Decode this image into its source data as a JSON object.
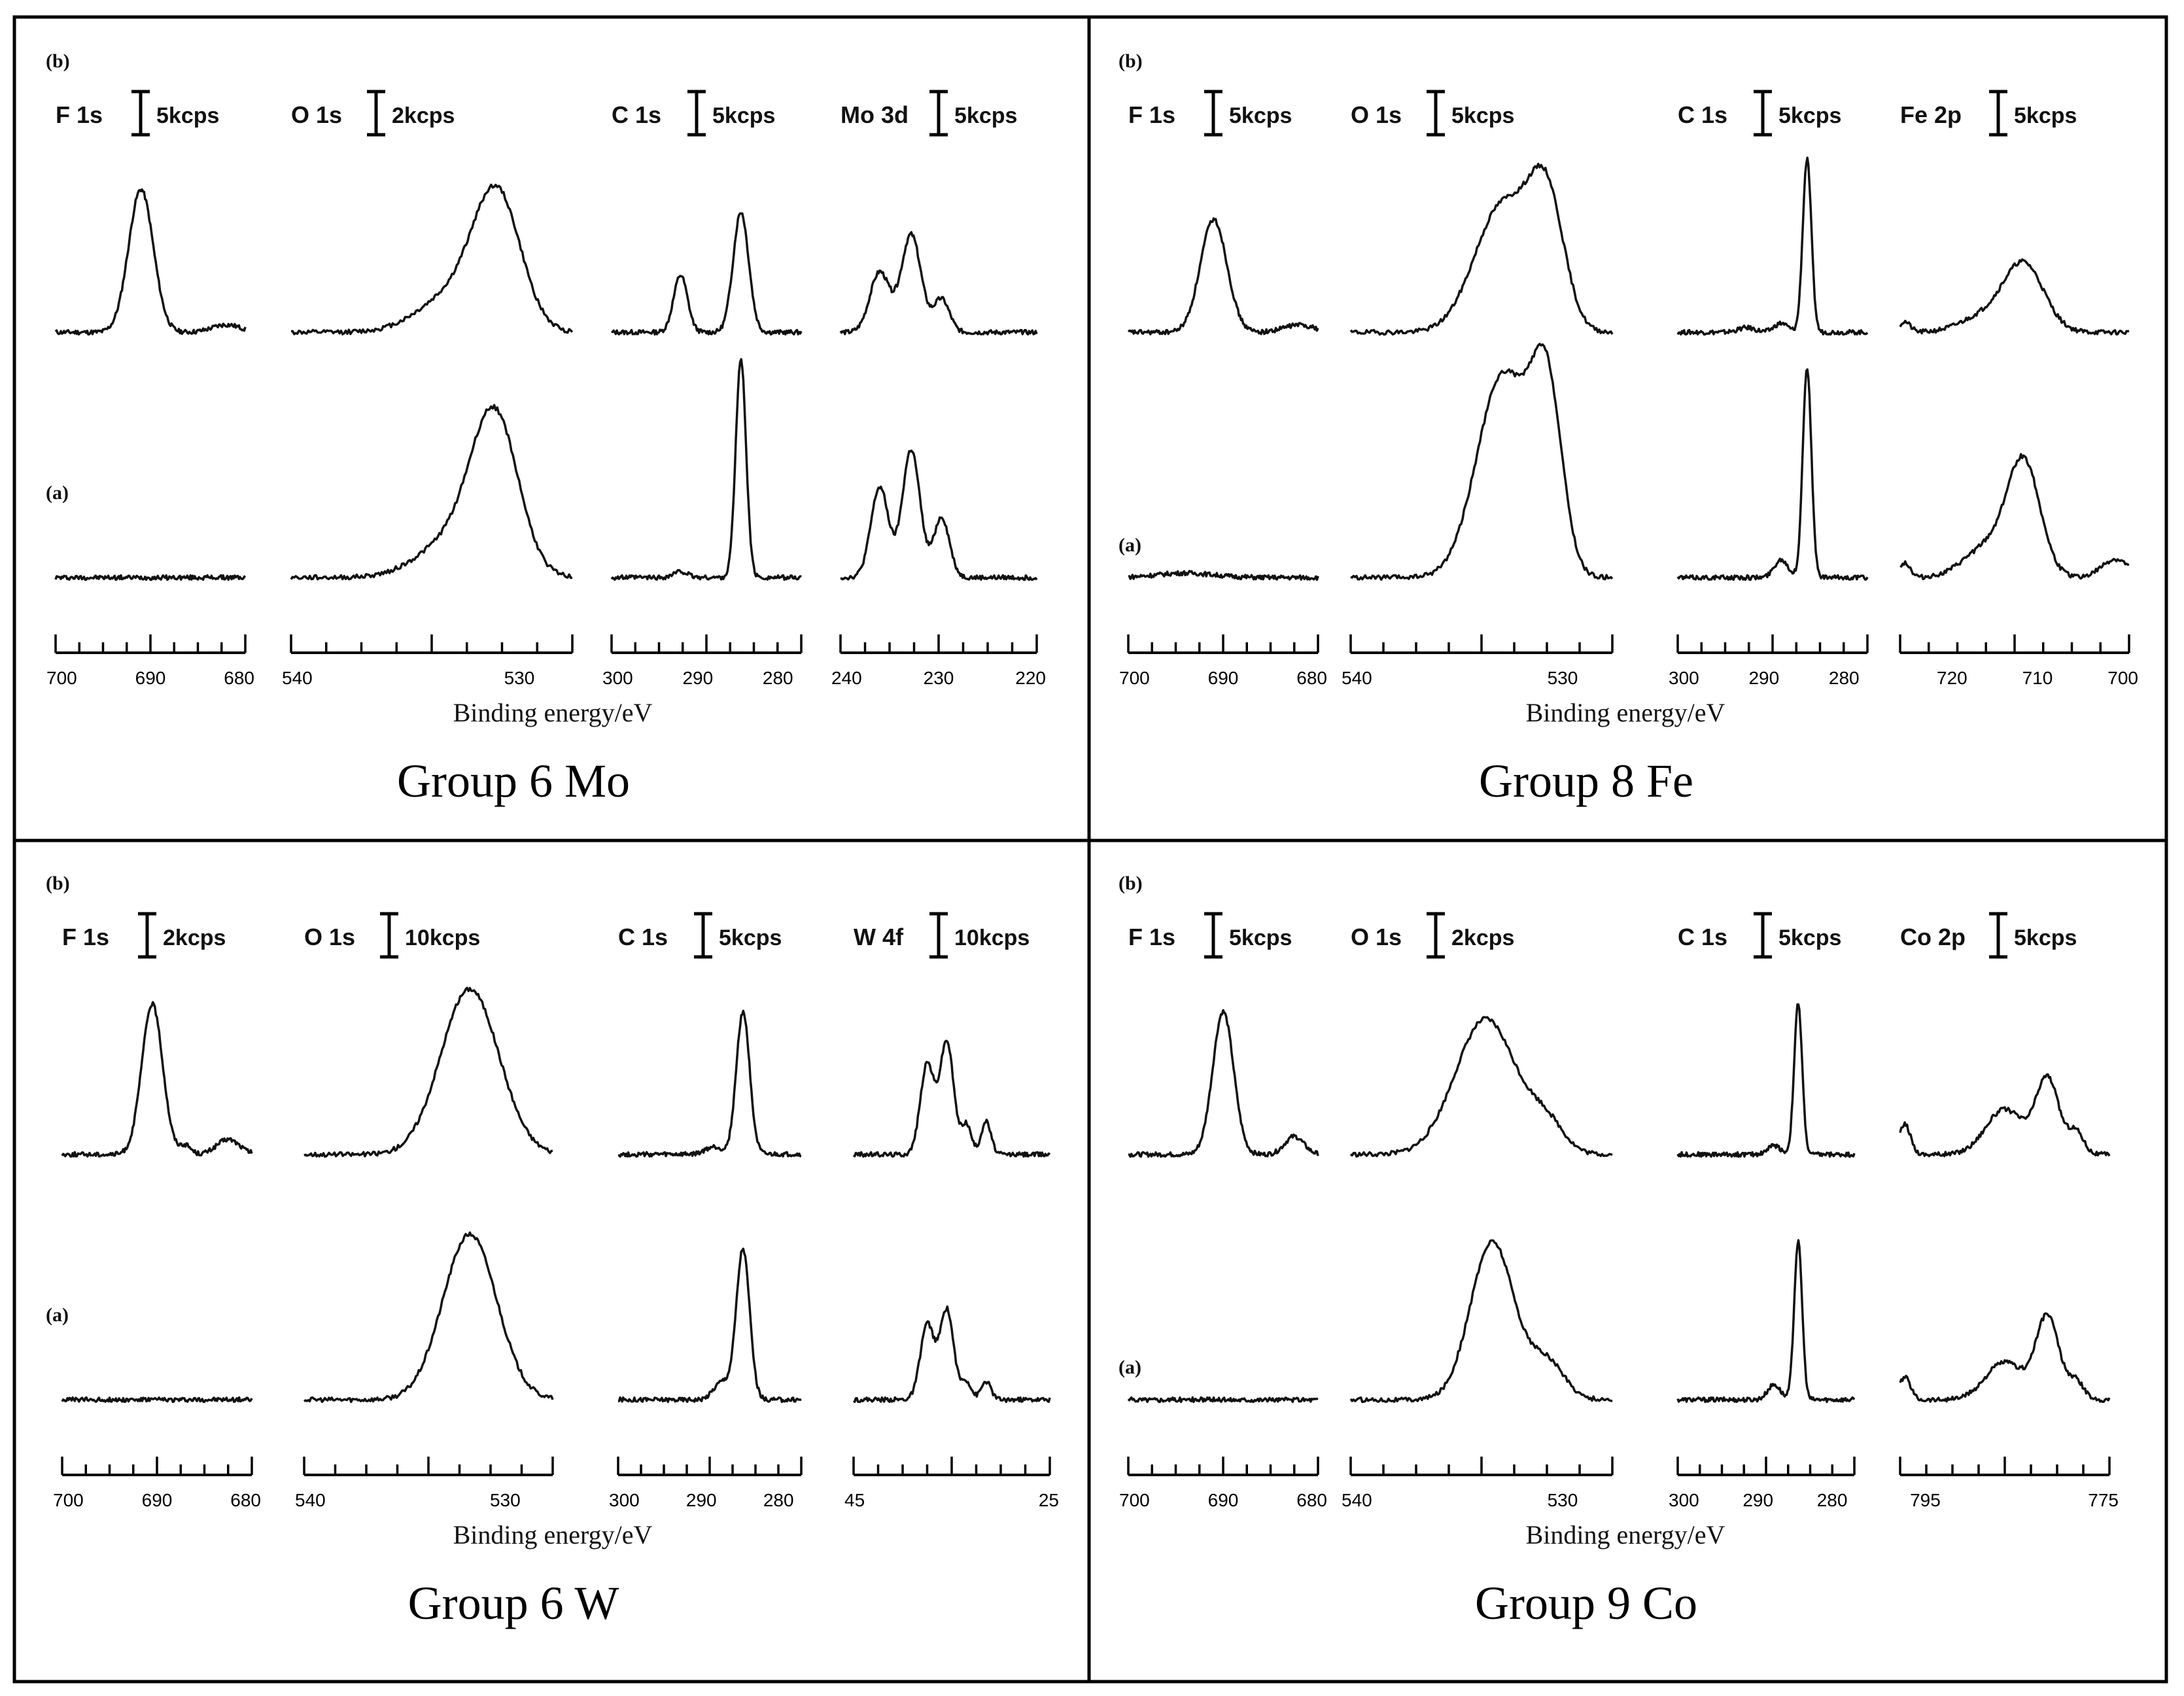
{
  "figure": {
    "description_panels": [
      "Group 6 Mo",
      "Group 8 Fe",
      "Group 6 W",
      "Group 9 Co"
    ]
  },
  "chart_data": [
    {
      "type": "line",
      "title": "Group 6 Mo",
      "xlabel": "Binding energy/eV",
      "state_labels": {
        "upper": "(b)",
        "lower": "(a)"
      },
      "subplots": [
        {
          "element": "F 1s",
          "scale": "5kcps",
          "xlim": [
            700,
            680
          ],
          "ticks": [
            "700",
            "690",
            "680"
          ],
          "peaks_b": [
            {
              "x": 691,
              "h": 0.95,
              "w": 1.3
            },
            {
              "x": 682,
              "h": 0.05,
              "w": 1.5
            }
          ],
          "peaks_a": []
        },
        {
          "element": "O 1s",
          "scale": "2kcps",
          "xlim": [
            540,
            528
          ],
          "ticks": [
            "540",
            "530"
          ],
          "peaks_b": [
            {
              "x": 531.2,
              "h": 0.85,
              "w": 1.0
            },
            {
              "x": 533,
              "h": 0.25,
              "w": 1.5
            }
          ],
          "peaks_a": [
            {
              "x": 531.3,
              "h": 1.0,
              "w": 1.0
            },
            {
              "x": 533,
              "h": 0.25,
              "w": 1.5
            }
          ]
        },
        {
          "element": "C 1s",
          "scale": "5kcps",
          "xlim": [
            300,
            278
          ],
          "ticks": [
            "300",
            "290",
            "280"
          ],
          "peaks_b": [
            {
              "x": 292,
              "h": 0.38,
              "w": 0.8
            },
            {
              "x": 285,
              "h": 0.8,
              "w": 0.9
            }
          ],
          "peaks_a": [
            {
              "x": 292,
              "h": 0.04,
              "w": 0.8
            },
            {
              "x": 285,
              "h": 1.45,
              "w": 0.6
            }
          ]
        },
        {
          "element": "Mo 3d",
          "scale": "5kcps",
          "xlim": [
            240,
            220
          ],
          "ticks": [
            "240",
            "230",
            "220"
          ],
          "peaks_b": [
            {
              "x": 236,
              "h": 0.4,
              "w": 1.0
            },
            {
              "x": 232.8,
              "h": 0.65,
              "w": 1.0
            },
            {
              "x": 229.7,
              "h": 0.22,
              "w": 0.8
            }
          ],
          "peaks_a": [
            {
              "x": 236,
              "h": 0.6,
              "w": 0.9
            },
            {
              "x": 232.8,
              "h": 0.85,
              "w": 0.9
            },
            {
              "x": 229.7,
              "h": 0.4,
              "w": 0.8
            }
          ]
        }
      ]
    },
    {
      "type": "line",
      "title": "Group 8 Fe",
      "xlabel": "Binding energy/eV",
      "state_labels": {
        "upper": "(b)",
        "lower": "(a)"
      },
      "subplots": [
        {
          "element": "F 1s",
          "scale": "5kcps",
          "xlim": [
            700,
            680
          ],
          "ticks": [
            "700",
            "690",
            "680"
          ],
          "peaks_b": [
            {
              "x": 691,
              "h": 0.75,
              "w": 1.4
            },
            {
              "x": 682,
              "h": 0.05,
              "w": 1.6
            }
          ],
          "peaks_a": [
            {
              "x": 694,
              "h": 0.03,
              "w": 3
            }
          ]
        },
        {
          "element": "O 1s",
          "scale": "5kcps",
          "xlim": [
            540,
            528
          ],
          "ticks": [
            "540",
            "530"
          ],
          "peaks_b": [
            {
              "x": 533,
              "h": 0.85,
              "w": 1.3
            },
            {
              "x": 531,
              "h": 0.8,
              "w": 0.8
            }
          ],
          "peaks_a": [
            {
              "x": 533,
              "h": 1.35,
              "w": 1.2
            },
            {
              "x": 531,
              "h": 1.15,
              "w": 0.7
            }
          ]
        },
        {
          "element": "C 1s",
          "scale": "5kcps",
          "xlim": [
            300,
            278
          ],
          "ticks": [
            "300",
            "290",
            "280"
          ],
          "peaks_b": [
            {
              "x": 292,
              "h": 0.03,
              "w": 1.0
            },
            {
              "x": 288,
              "h": 0.06,
              "w": 0.8
            },
            {
              "x": 285,
              "h": 1.15,
              "w": 0.5
            }
          ],
          "peaks_a": [
            {
              "x": 288,
              "h": 0.12,
              "w": 0.8
            },
            {
              "x": 285,
              "h": 1.4,
              "w": 0.5
            }
          ]
        },
        {
          "element": "Fe 2p",
          "scale": "5kcps",
          "xlim": [
            725,
            700
          ],
          "ticks": [
            "720",
            "710",
            "700"
          ],
          "peaks_b": [
            {
              "x": 711.5,
              "h": 0.45,
              "w": 2.2
            },
            {
              "x": 716,
              "h": 0.1,
              "w": 2.5
            },
            {
              "x": 724.5,
              "h": 0.07,
              "w": 0.6
            }
          ],
          "peaks_a": [
            {
              "x": 711.5,
              "h": 0.75,
              "w": 1.8
            },
            {
              "x": 715.5,
              "h": 0.2,
              "w": 2.5
            },
            {
              "x": 724.5,
              "h": 0.1,
              "w": 0.6
            },
            {
              "x": 701.5,
              "h": 0.12,
              "w": 1.5
            }
          ]
        }
      ]
    },
    {
      "type": "line",
      "title": "Group 6 W",
      "xlabel": "Binding energy/eV",
      "state_labels": {
        "upper": "(b)",
        "lower": "(a)"
      },
      "subplots": [
        {
          "element": "F 1s",
          "scale": "2kcps",
          "xlim": [
            700,
            680
          ],
          "ticks": [
            "700",
            "690",
            "680"
          ],
          "peaks_b": [
            {
              "x": 690.5,
              "h": 1.0,
              "w": 1.1
            },
            {
              "x": 687,
              "h": 0.06,
              "w": 0.6
            },
            {
              "x": 682.5,
              "h": 0.1,
              "w": 1.2
            }
          ],
          "peaks_a": []
        },
        {
          "element": "O 1s",
          "scale": "10kcps",
          "xlim": [
            540,
            528
          ],
          "ticks": [
            "540",
            "530"
          ],
          "peaks_b": [
            {
              "x": 532,
              "h": 1.1,
              "w": 1.4
            }
          ],
          "peaks_a": [
            {
              "x": 532,
              "h": 1.1,
              "w": 1.3
            }
          ]
        },
        {
          "element": "C 1s",
          "scale": "5kcps",
          "xlim": [
            300,
            278
          ],
          "ticks": [
            "300",
            "290",
            "280"
          ],
          "peaks_b": [
            {
              "x": 285,
              "h": 0.95,
              "w": 0.8
            },
            {
              "x": 288.5,
              "h": 0.05,
              "w": 1
            }
          ],
          "peaks_a": [
            {
              "x": 285,
              "h": 1.0,
              "w": 0.8
            },
            {
              "x": 287.5,
              "h": 0.12,
              "w": 1
            }
          ]
        },
        {
          "element": "W 4f",
          "scale": "10kcps",
          "xlim": [
            45,
            25
          ],
          "ticks": [
            "45",
            "25"
          ],
          "peaks_b": [
            {
              "x": 37.5,
              "h": 0.6,
              "w": 0.7
            },
            {
              "x": 35.5,
              "h": 0.75,
              "w": 0.7
            },
            {
              "x": 33.5,
              "h": 0.2,
              "w": 0.5
            },
            {
              "x": 31.5,
              "h": 0.22,
              "w": 0.5
            }
          ],
          "peaks_a": [
            {
              "x": 37.5,
              "h": 0.5,
              "w": 0.7
            },
            {
              "x": 35.5,
              "h": 0.6,
              "w": 0.7
            },
            {
              "x": 33.5,
              "h": 0.12,
              "w": 0.5
            },
            {
              "x": 31.5,
              "h": 0.12,
              "w": 0.5
            }
          ]
        }
      ]
    },
    {
      "type": "line",
      "title": "Group 9 Co",
      "xlabel": "Binding energy/eV",
      "state_labels": {
        "upper": "(b)",
        "lower": "(a)"
      },
      "subplots": [
        {
          "element": "F 1s",
          "scale": "5kcps",
          "xlim": [
            700,
            680
          ],
          "ticks": [
            "700",
            "690",
            "680"
          ],
          "peaks_b": [
            {
              "x": 690,
              "h": 0.95,
              "w": 1.1
            },
            {
              "x": 682.5,
              "h": 0.12,
              "w": 1.0
            }
          ],
          "peaks_a": []
        },
        {
          "element": "O 1s",
          "scale": "2kcps",
          "xlim": [
            540,
            528
          ],
          "ticks": [
            "540",
            "530"
          ],
          "peaks_b": [
            {
              "x": 533.8,
              "h": 0.9,
              "w": 1.4
            },
            {
              "x": 531,
              "h": 0.18,
              "w": 0.8
            }
          ],
          "peaks_a": [
            {
              "x": 533.5,
              "h": 1.05,
              "w": 1.0
            },
            {
              "x": 531,
              "h": 0.25,
              "w": 0.8
            }
          ]
        },
        {
          "element": "C 1s",
          "scale": "5kcps",
          "xlim": [
            300,
            278
          ],
          "ticks": [
            "300",
            "290",
            "280"
          ],
          "peaks_b": [
            {
              "x": 288,
              "h": 0.06,
              "w": 0.8
            },
            {
              "x": 285,
              "h": 1.0,
              "w": 0.5
            }
          ],
          "peaks_a": [
            {
              "x": 288,
              "h": 0.1,
              "w": 0.8
            },
            {
              "x": 285,
              "h": 1.05,
              "w": 0.5
            }
          ]
        },
        {
          "element": "Co 2p",
          "scale": "5kcps",
          "xlim": [
            797,
            775
          ],
          "ticks": [
            "795",
            "775"
          ],
          "peaks_b": [
            {
              "x": 781.5,
              "h": 0.5,
              "w": 1.2
            },
            {
              "x": 786,
              "h": 0.3,
              "w": 2.0
            },
            {
              "x": 778.5,
              "h": 0.15,
              "w": 0.8
            },
            {
              "x": 796.5,
              "h": 0.2,
              "w": 0.6
            }
          ],
          "peaks_a": [
            {
              "x": 781.5,
              "h": 0.55,
              "w": 1.2
            },
            {
              "x": 786,
              "h": 0.25,
              "w": 2.0
            },
            {
              "x": 778.5,
              "h": 0.12,
              "w": 0.8
            },
            {
              "x": 796.5,
              "h": 0.15,
              "w": 0.6
            }
          ]
        }
      ]
    }
  ]
}
